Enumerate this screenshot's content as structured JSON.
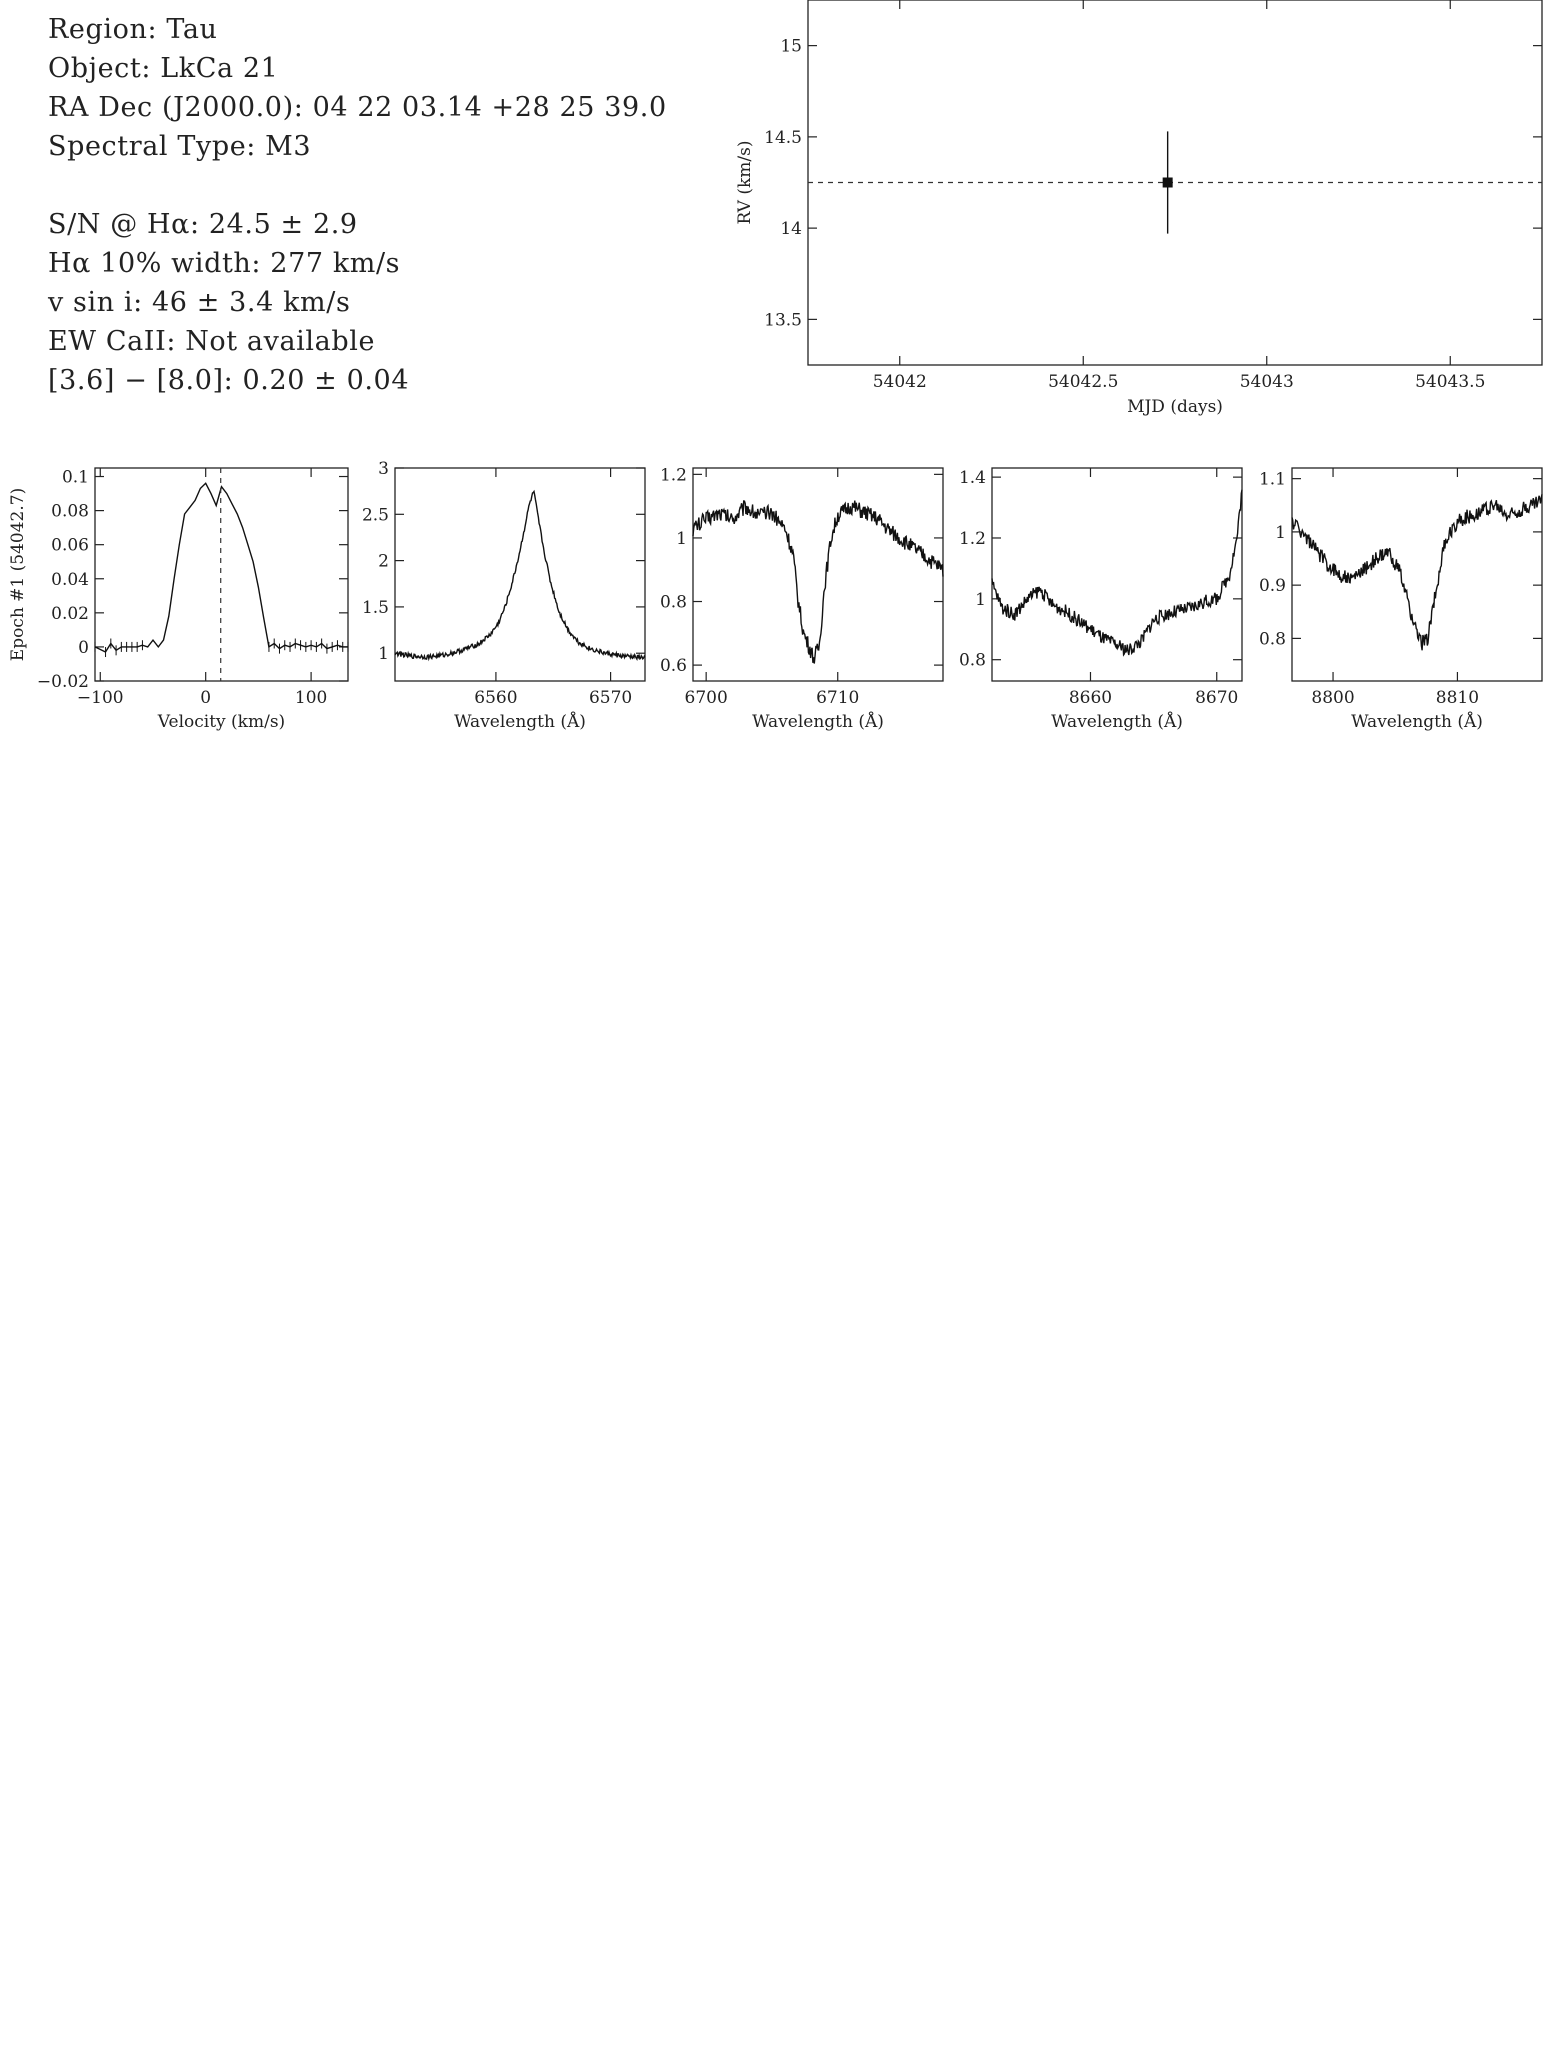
{
  "info": {
    "region": "Region: Tau",
    "object": "Object: LkCa 21",
    "radec": "RA Dec (J2000.0): 04 22 03.14 +28 25 39.0",
    "sptype": "Spectral Type: M3",
    "sn": "S/N @ Hα: 24.5 ± 2.9",
    "ha_width": "Hα 10% width: 277 km/s",
    "vsini": "v sin i: 46 ± 3.4 km/s",
    "ew_ca": "EW CaII: Not available",
    "color": "[3.6] − [8.0]: 0.20 ± 0.04"
  },
  "chart_data": [
    {
      "id": "rv",
      "type": "scatter",
      "xlabel": "MJD (days)",
      "ylabel": "RV (km/s)",
      "xlim": [
        54041.75,
        54043.75
      ],
      "ylim": [
        13.25,
        15.25
      ],
      "xticks": [
        54042,
        54042.5,
        54043,
        54043.5
      ],
      "xtick_labels": [
        "54042",
        "54042.5",
        "54043",
        "54043.5"
      ],
      "yticks": [
        13.5,
        14,
        14.5,
        15
      ],
      "ytick_labels": [
        "13.5",
        "14",
        "14.5",
        "15"
      ],
      "points": [
        {
          "x": 54042.73,
          "y": 14.25,
          "yerr": 0.28
        }
      ],
      "mean_line": 14.25
    },
    {
      "id": "halpha_vel",
      "type": "line",
      "xlabel": "Velocity (km/s)",
      "ylabel": "Epoch #1 (54042.7)",
      "xlim": [
        -105,
        135
      ],
      "ylim": [
        -0.02,
        0.105
      ],
      "xticks": [
        -100,
        0,
        100
      ],
      "xtick_labels": [
        "−100",
        "0",
        "100"
      ],
      "yticks": [
        -0.02,
        0,
        0.02,
        0.04,
        0.06,
        0.08,
        0.1
      ],
      "ytick_labels": [
        "−0.02",
        "0",
        "0.02",
        "0.04",
        "0.06",
        "0.08",
        "0.1"
      ],
      "vline": 14.25,
      "x": [
        -105,
        -95,
        -90,
        -85,
        -80,
        -75,
        -70,
        -65,
        -60,
        -55,
        -50,
        -45,
        -40,
        -35,
        -30,
        -25,
        -20,
        -15,
        -10,
        -5,
        0,
        5,
        10,
        15,
        20,
        25,
        30,
        35,
        40,
        45,
        50,
        55,
        60,
        65,
        70,
        75,
        80,
        85,
        90,
        95,
        100,
        105,
        110,
        115,
        120,
        125,
        130,
        135
      ],
      "y": [
        0.0,
        -0.003,
        0.002,
        -0.002,
        0.0,
        0.0,
        0.0,
        0.0,
        0.001,
        0.0,
        0.004,
        0.0,
        0.004,
        0.018,
        0.04,
        0.06,
        0.078,
        0.082,
        0.086,
        0.093,
        0.096,
        0.09,
        0.083,
        0.094,
        0.09,
        0.084,
        0.078,
        0.07,
        0.06,
        0.05,
        0.035,
        0.017,
        0.0,
        0.002,
        -0.001,
        0.001,
        0.0,
        0.002,
        0.001,
        0.0,
        0.001,
        0.0,
        0.002,
        -0.001,
        0.0,
        0.001,
        0.0,
        0.0
      ]
    },
    {
      "id": "halpha_wave",
      "type": "line",
      "xlabel": "Wavelength (Å)",
      "ylabel": "",
      "xlim": [
        6551.2,
        6573.0
      ],
      "ylim": [
        0.7,
        3.0
      ],
      "xticks": [
        6560,
        6570
      ],
      "xtick_labels": [
        "6560",
        "6570"
      ],
      "yticks": [
        1,
        1.5,
        2,
        2.5,
        3
      ],
      "ytick_labels": [
        "1",
        "1.5",
        "2",
        "2.5",
        "3"
      ],
      "x": [
        6551.2,
        6552.5,
        6554,
        6555.5,
        6557,
        6558.5,
        6559.5,
        6560.2,
        6560.8,
        6561.4,
        6562.0,
        6562.5,
        6562.9,
        6563.3,
        6563.7,
        6564.2,
        6564.8,
        6565.5,
        6566.3,
        6567.2,
        6568.2,
        6569.5,
        6571,
        6573
      ],
      "y": [
        1.0,
        0.97,
        0.96,
        0.98,
        1.03,
        1.1,
        1.2,
        1.32,
        1.5,
        1.75,
        2.05,
        2.35,
        2.6,
        2.75,
        2.45,
        2.1,
        1.75,
        1.45,
        1.25,
        1.12,
        1.05,
        1.0,
        0.97,
        0.95
      ]
    },
    {
      "id": "li",
      "type": "line",
      "xlabel": "Wavelength (Å)",
      "ylabel": "",
      "xlim": [
        6699.0,
        6718.0
      ],
      "ylim": [
        0.55,
        1.22
      ],
      "xticks": [
        6700,
        6710
      ],
      "xtick_labels": [
        "6700",
        "6710"
      ],
      "yticks": [
        0.6,
        0.8,
        1,
        1.2
      ],
      "ytick_labels": [
        "0.6",
        "0.8",
        "1",
        "1.2"
      ],
      "x": [
        6699,
        6700,
        6701,
        6702,
        6703,
        6704,
        6705,
        6706,
        6706.6,
        6707.0,
        6707.4,
        6707.8,
        6708.2,
        6708.6,
        6709.0,
        6709.5,
        6710,
        6711,
        6712,
        6713,
        6714,
        6715,
        6716,
        6717,
        6718
      ],
      "y": [
        1.03,
        1.06,
        1.08,
        1.06,
        1.1,
        1.07,
        1.08,
        1.03,
        0.95,
        0.8,
        0.7,
        0.66,
        0.62,
        0.66,
        0.85,
        1.0,
        1.07,
        1.1,
        1.08,
        1.06,
        1.02,
        0.99,
        0.96,
        0.93,
        0.9
      ]
    },
    {
      "id": "ca8662",
      "type": "line",
      "xlabel": "Wavelength (Å)",
      "ylabel": "",
      "xlim": [
        8652.2,
        8672.0
      ],
      "ylim": [
        0.73,
        1.43
      ],
      "xticks": [
        8660,
        8670
      ],
      "xtick_labels": [
        "8660",
        "8670"
      ],
      "yticks": [
        0.8,
        1,
        1.2,
        1.4
      ],
      "ytick_labels": [
        "0.8",
        "1",
        "1.2",
        "1.4"
      ],
      "x": [
        8652.2,
        8653,
        8654,
        8655,
        8656,
        8657,
        8658,
        8659,
        8660,
        8661,
        8662,
        8663,
        8664,
        8665,
        8666,
        8667,
        8668,
        8669,
        8670,
        8671,
        8671.6,
        8672
      ],
      "y": [
        1.05,
        0.97,
        0.95,
        1.0,
        1.03,
        0.98,
        0.96,
        0.93,
        0.9,
        0.87,
        0.85,
        0.83,
        0.86,
        0.93,
        0.95,
        0.96,
        0.97,
        0.99,
        1.0,
        1.08,
        1.2,
        1.36
      ]
    },
    {
      "id": "ca8805",
      "type": "line",
      "xlabel": "Wavelength (Å)",
      "ylabel": "",
      "xlim": [
        8796.7,
        8816.8
      ],
      "ylim": [
        0.72,
        1.12
      ],
      "xticks": [
        8800,
        8810
      ],
      "xtick_labels": [
        "8800",
        "8810"
      ],
      "yticks": [
        0.8,
        0.9,
        1,
        1.1
      ],
      "ytick_labels": [
        "0.8",
        "0.9",
        "1",
        "1.1"
      ],
      "x": [
        8796.7,
        8797.5,
        8798.5,
        8799.5,
        8800.5,
        8801.5,
        8802.5,
        8803.5,
        8804.5,
        8805.3,
        8806.0,
        8806.6,
        8807.1,
        8807.6,
        8808.2,
        8809,
        8810,
        8811,
        8812,
        8813,
        8814,
        8815,
        8816,
        8816.8
      ],
      "y": [
        1.02,
        1.0,
        0.97,
        0.94,
        0.92,
        0.91,
        0.93,
        0.95,
        0.96,
        0.93,
        0.87,
        0.82,
        0.79,
        0.8,
        0.88,
        0.98,
        1.02,
        1.03,
        1.04,
        1.05,
        1.03,
        1.04,
        1.05,
        1.06
      ]
    }
  ]
}
